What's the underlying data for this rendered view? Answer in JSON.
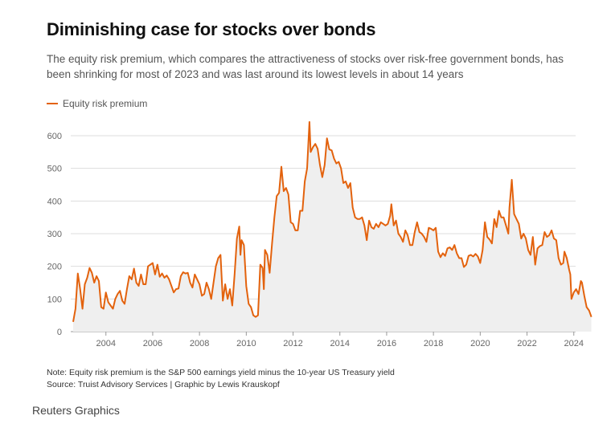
{
  "header": {
    "title": "Diminishing case for stocks over bonds",
    "subtitle": "The equity risk premium, which compares the attractiveness of stocks over risk-free government bonds, has been shrinking for most of 2023 and was last around its lowest levels in about 14 years"
  },
  "footer": {
    "note": "Note: Equity risk premium is the S&P 500 earnings yield minus the 10-year US Treasury yield",
    "source": "Source: Truist Advisory Services | Graphic by Lewis Krauskopf",
    "brand": "Reuters Graphics"
  },
  "colors": {
    "line": "#e3620d",
    "area": "#efefef",
    "grid": "#dddddd"
  },
  "chart_data": {
    "type": "area",
    "title": "Diminishing case for stocks over bonds",
    "legend": {
      "entries": [
        "Equity risk premium"
      ],
      "placement": "top-left"
    },
    "series": [
      {
        "name": "Equity risk premium",
        "points": [
          [
            2002.6,
            30
          ],
          [
            2002.7,
            70
          ],
          [
            2002.8,
            178
          ],
          [
            2002.9,
            130
          ],
          [
            2003.0,
            70
          ],
          [
            2003.1,
            145
          ],
          [
            2003.2,
            165
          ],
          [
            2003.3,
            195
          ],
          [
            2003.4,
            180
          ],
          [
            2003.5,
            150
          ],
          [
            2003.6,
            170
          ],
          [
            2003.7,
            155
          ],
          [
            2003.8,
            75
          ],
          [
            2003.9,
            70
          ],
          [
            2004.0,
            120
          ],
          [
            2004.1,
            90
          ],
          [
            2004.2,
            80
          ],
          [
            2004.3,
            70
          ],
          [
            2004.4,
            100
          ],
          [
            2004.5,
            115
          ],
          [
            2004.6,
            125
          ],
          [
            2004.7,
            95
          ],
          [
            2004.8,
            85
          ],
          [
            2004.9,
            130
          ],
          [
            2005.0,
            170
          ],
          [
            2005.1,
            160
          ],
          [
            2005.2,
            193
          ],
          [
            2005.3,
            150
          ],
          [
            2005.4,
            140
          ],
          [
            2005.5,
            175
          ],
          [
            2005.6,
            145
          ],
          [
            2005.7,
            145
          ],
          [
            2005.8,
            200
          ],
          [
            2005.9,
            205
          ],
          [
            2006.0,
            210
          ],
          [
            2006.1,
            175
          ],
          [
            2006.2,
            205
          ],
          [
            2006.3,
            168
          ],
          [
            2006.4,
            178
          ],
          [
            2006.5,
            165
          ],
          [
            2006.6,
            172
          ],
          [
            2006.7,
            160
          ],
          [
            2006.8,
            140
          ],
          [
            2006.9,
            120
          ],
          [
            2007.0,
            130
          ],
          [
            2007.1,
            132
          ],
          [
            2007.2,
            170
          ],
          [
            2007.3,
            182
          ],
          [
            2007.4,
            178
          ],
          [
            2007.5,
            180
          ],
          [
            2007.6,
            150
          ],
          [
            2007.7,
            135
          ],
          [
            2007.8,
            175
          ],
          [
            2007.9,
            160
          ],
          [
            2008.0,
            145
          ],
          [
            2008.1,
            110
          ],
          [
            2008.2,
            115
          ],
          [
            2008.3,
            150
          ],
          [
            2008.4,
            130
          ],
          [
            2008.5,
            100
          ],
          [
            2008.6,
            150
          ],
          [
            2008.7,
            200
          ],
          [
            2008.8,
            225
          ],
          [
            2008.9,
            235
          ],
          [
            2009.0,
            95
          ],
          [
            2009.1,
            145
          ],
          [
            2009.2,
            100
          ],
          [
            2009.3,
            130
          ],
          [
            2009.4,
            80
          ],
          [
            2009.5,
            175
          ],
          [
            2009.6,
            285
          ],
          [
            2009.7,
            322
          ],
          [
            2009.75,
            235
          ],
          [
            2009.8,
            280
          ],
          [
            2009.9,
            265
          ],
          [
            2010.0,
            140
          ],
          [
            2010.1,
            85
          ],
          [
            2010.2,
            75
          ],
          [
            2010.3,
            50
          ],
          [
            2010.4,
            45
          ],
          [
            2010.5,
            50
          ],
          [
            2010.6,
            205
          ],
          [
            2010.7,
            195
          ],
          [
            2010.75,
            130
          ],
          [
            2010.8,
            250
          ],
          [
            2010.9,
            235
          ],
          [
            2011.0,
            180
          ],
          [
            2011.1,
            270
          ],
          [
            2011.2,
            350
          ],
          [
            2011.3,
            415
          ],
          [
            2011.4,
            425
          ],
          [
            2011.5,
            505
          ],
          [
            2011.6,
            430
          ],
          [
            2011.7,
            440
          ],
          [
            2011.8,
            420
          ],
          [
            2011.9,
            335
          ],
          [
            2012.0,
            330
          ],
          [
            2012.1,
            310
          ],
          [
            2012.2,
            310
          ],
          [
            2012.3,
            370
          ],
          [
            2012.4,
            370
          ],
          [
            2012.5,
            460
          ],
          [
            2012.6,
            500
          ],
          [
            2012.7,
            642
          ],
          [
            2012.75,
            550
          ],
          [
            2012.85,
            565
          ],
          [
            2012.95,
            575
          ],
          [
            2013.05,
            560
          ],
          [
            2013.15,
            510
          ],
          [
            2013.25,
            473
          ],
          [
            2013.35,
            510
          ],
          [
            2013.45,
            592
          ],
          [
            2013.55,
            558
          ],
          [
            2013.65,
            555
          ],
          [
            2013.75,
            530
          ],
          [
            2013.85,
            515
          ],
          [
            2013.95,
            520
          ],
          [
            2014.05,
            500
          ],
          [
            2014.15,
            455
          ],
          [
            2014.25,
            460
          ],
          [
            2014.35,
            440
          ],
          [
            2014.45,
            455
          ],
          [
            2014.55,
            380
          ],
          [
            2014.65,
            350
          ],
          [
            2014.75,
            345
          ],
          [
            2014.85,
            345
          ],
          [
            2014.95,
            350
          ],
          [
            2015.05,
            325
          ],
          [
            2015.15,
            280
          ],
          [
            2015.25,
            340
          ],
          [
            2015.35,
            320
          ],
          [
            2015.45,
            315
          ],
          [
            2015.55,
            330
          ],
          [
            2015.65,
            320
          ],
          [
            2015.75,
            335
          ],
          [
            2015.85,
            330
          ],
          [
            2015.95,
            325
          ],
          [
            2016.05,
            330
          ],
          [
            2016.15,
            355
          ],
          [
            2016.2,
            390
          ],
          [
            2016.3,
            325
          ],
          [
            2016.4,
            340
          ],
          [
            2016.5,
            300
          ],
          [
            2016.6,
            290
          ],
          [
            2016.7,
            275
          ],
          [
            2016.8,
            310
          ],
          [
            2016.9,
            295
          ],
          [
            2017.0,
            265
          ],
          [
            2017.1,
            265
          ],
          [
            2017.2,
            305
          ],
          [
            2017.3,
            335
          ],
          [
            2017.4,
            305
          ],
          [
            2017.5,
            300
          ],
          [
            2017.6,
            290
          ],
          [
            2017.7,
            275
          ],
          [
            2017.8,
            318
          ],
          [
            2017.9,
            315
          ],
          [
            2018.0,
            310
          ],
          [
            2018.1,
            318
          ],
          [
            2018.2,
            245
          ],
          [
            2018.3,
            228
          ],
          [
            2018.4,
            240
          ],
          [
            2018.5,
            232
          ],
          [
            2018.6,
            255
          ],
          [
            2018.7,
            258
          ],
          [
            2018.8,
            250
          ],
          [
            2018.9,
            265
          ],
          [
            2019.0,
            240
          ],
          [
            2019.1,
            225
          ],
          [
            2019.2,
            225
          ],
          [
            2019.3,
            198
          ],
          [
            2019.4,
            205
          ],
          [
            2019.5,
            232
          ],
          [
            2019.6,
            235
          ],
          [
            2019.7,
            230
          ],
          [
            2019.8,
            238
          ],
          [
            2019.9,
            230
          ],
          [
            2020.0,
            210
          ],
          [
            2020.1,
            250
          ],
          [
            2020.2,
            335
          ],
          [
            2020.3,
            290
          ],
          [
            2020.4,
            282
          ],
          [
            2020.5,
            270
          ],
          [
            2020.6,
            345
          ],
          [
            2020.7,
            320
          ],
          [
            2020.8,
            370
          ],
          [
            2020.9,
            350
          ],
          [
            2021.0,
            350
          ],
          [
            2021.1,
            325
          ],
          [
            2021.2,
            300
          ],
          [
            2021.25,
            380
          ],
          [
            2021.35,
            465
          ],
          [
            2021.45,
            360
          ],
          [
            2021.55,
            345
          ],
          [
            2021.65,
            330
          ],
          [
            2021.75,
            285
          ],
          [
            2021.85,
            300
          ],
          [
            2021.95,
            285
          ],
          [
            2022.05,
            250
          ],
          [
            2022.15,
            235
          ],
          [
            2022.25,
            290
          ],
          [
            2022.35,
            205
          ],
          [
            2022.45,
            255
          ],
          [
            2022.55,
            262
          ],
          [
            2022.65,
            265
          ],
          [
            2022.75,
            305
          ],
          [
            2022.85,
            290
          ],
          [
            2022.95,
            295
          ],
          [
            2023.05,
            310
          ],
          [
            2023.15,
            285
          ],
          [
            2023.25,
            280
          ],
          [
            2023.35,
            225
          ],
          [
            2023.45,
            205
          ],
          [
            2023.55,
            210
          ],
          [
            2023.6,
            245
          ],
          [
            2023.7,
            225
          ],
          [
            2023.8,
            190
          ],
          [
            2023.85,
            175
          ],
          [
            2023.9,
            100
          ],
          [
            2024.0,
            120
          ],
          [
            2024.1,
            130
          ],
          [
            2024.2,
            115
          ],
          [
            2024.3,
            155
          ],
          [
            2024.35,
            150
          ],
          [
            2024.45,
            110
          ],
          [
            2024.55,
            75
          ],
          [
            2024.65,
            65
          ],
          [
            2024.75,
            45
          ]
        ]
      }
    ],
    "xticks": [
      2004,
      2006,
      2008,
      2010,
      2012,
      2014,
      2016,
      2018,
      2020,
      2022,
      2024
    ],
    "yticks": [
      0,
      100,
      200,
      300,
      400,
      500,
      600
    ],
    "xlim": [
      2002.6,
      2024.8
    ],
    "ylim": [
      0,
      650
    ],
    "grid": "horizontal"
  }
}
